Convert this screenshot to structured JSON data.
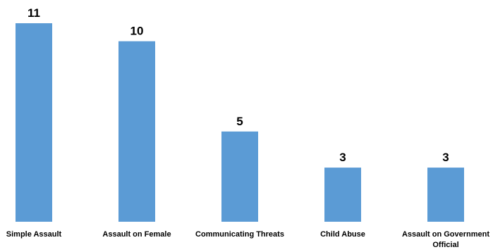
{
  "chart_data": {
    "type": "bar",
    "categories": [
      "Simple Assault",
      "Assault on Female",
      "Communicating Threats",
      "Child Abuse",
      "Assault on Government Official"
    ],
    "values": [
      11,
      10,
      5,
      3,
      3
    ],
    "data_labels": [
      "11",
      "10",
      "5",
      "3",
      "3"
    ],
    "title": "",
    "xlabel": "",
    "ylabel": "",
    "ylim": [
      0,
      11
    ],
    "grid": false,
    "legend": "none",
    "colors": {
      "bar": "#5b9bd5",
      "text": "#000000",
      "background": "#ffffff"
    }
  }
}
